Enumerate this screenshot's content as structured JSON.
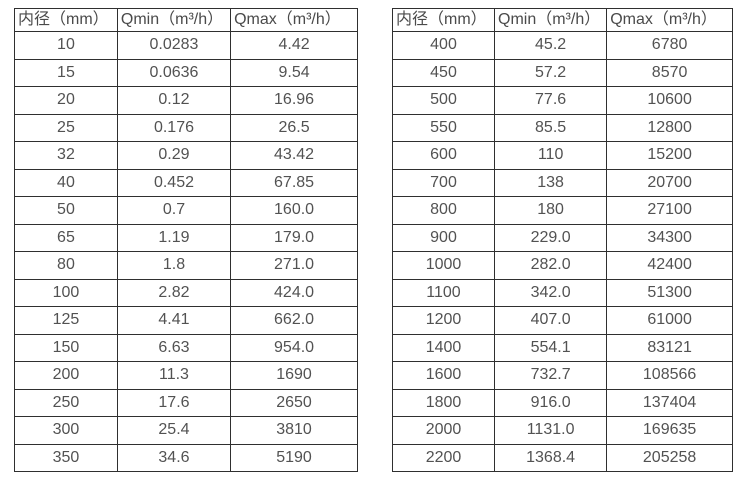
{
  "page": {
    "background_color": "#ffffff",
    "border_color": "#2f2f2f",
    "text_color": "#525252"
  },
  "tables": [
    {
      "name": "flow-spec-table-small-diameters",
      "headers": [
        "内径（mm）",
        "Qmin（m³/h）",
        "Qmax（m³/h）"
      ],
      "rows": [
        [
          "10",
          "0.0283",
          "4.42"
        ],
        [
          "15",
          "0.0636",
          "9.54"
        ],
        [
          "20",
          "0.12",
          "16.96"
        ],
        [
          "25",
          "0.176",
          "26.5"
        ],
        [
          "32",
          "0.29",
          "43.42"
        ],
        [
          "40",
          "0.452",
          "67.85"
        ],
        [
          "50",
          "0.7",
          "160.0"
        ],
        [
          "65",
          "1.19",
          "179.0"
        ],
        [
          "80",
          "1.8",
          "271.0"
        ],
        [
          "100",
          "2.82",
          "424.0"
        ],
        [
          "125",
          "4.41",
          "662.0"
        ],
        [
          "150",
          "6.63",
          "954.0"
        ],
        [
          "200",
          "11.3",
          "1690"
        ],
        [
          "250",
          "17.6",
          "2650"
        ],
        [
          "300",
          "25.4",
          "3810"
        ],
        [
          "350",
          "34.6",
          "5190"
        ]
      ]
    },
    {
      "name": "flow-spec-table-large-diameters",
      "headers": [
        "内径（mm）",
        "Qmin（m³/h）",
        "Qmax（m³/h）"
      ],
      "rows": [
        [
          "400",
          "45.2",
          "6780"
        ],
        [
          "450",
          "57.2",
          "8570"
        ],
        [
          "500",
          "77.6",
          "10600"
        ],
        [
          "550",
          "85.5",
          "12800"
        ],
        [
          "600",
          "110",
          "15200"
        ],
        [
          "700",
          "138",
          "20700"
        ],
        [
          "800",
          "180",
          "27100"
        ],
        [
          "900",
          "229.0",
          "34300"
        ],
        [
          "1000",
          "282.0",
          "42400"
        ],
        [
          "1100",
          "342.0",
          "51300"
        ],
        [
          "1200",
          "407.0",
          "61000"
        ],
        [
          "1400",
          "554.1",
          "83121"
        ],
        [
          "1600",
          "732.7",
          "108566"
        ],
        [
          "1800",
          "916.0",
          "137404"
        ],
        [
          "2000",
          "1131.0",
          "169635"
        ],
        [
          "2200",
          "1368.4",
          "205258"
        ]
      ]
    }
  ]
}
